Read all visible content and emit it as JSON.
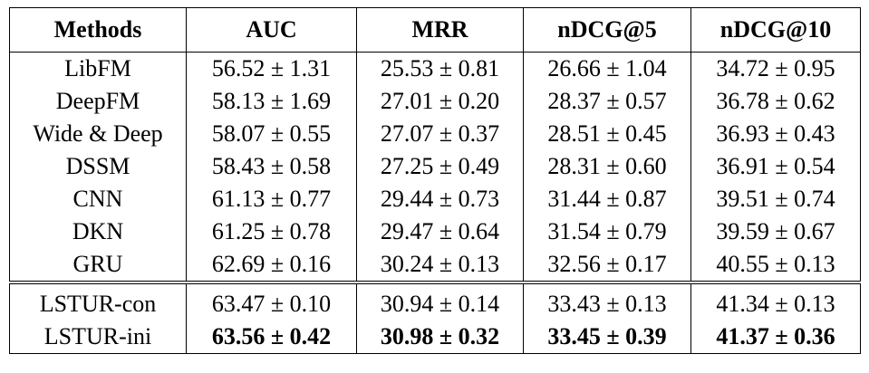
{
  "table": {
    "header": [
      "Methods",
      "AUC",
      "MRR",
      "nDCG@5",
      "nDCG@10"
    ],
    "groups": [
      [
        [
          "LibFM",
          "56.52 ± 1.31",
          "25.53 ± 0.81",
          "26.66 ± 1.04",
          "34.72 ± 0.95"
        ],
        [
          "DeepFM",
          "58.13 ± 1.69",
          "27.01 ± 0.20",
          "28.37 ± 0.57",
          "36.78 ± 0.62"
        ],
        [
          "Wide & Deep",
          "58.07 ± 0.55",
          "27.07 ± 0.37",
          "28.51 ± 0.45",
          "36.93 ± 0.43"
        ],
        [
          "DSSM",
          "58.43 ± 0.58",
          "27.25 ± 0.49",
          "28.31 ± 0.60",
          "36.91 ± 0.54"
        ],
        [
          "CNN",
          "61.13 ± 0.77",
          "29.44 ± 0.73",
          "31.44 ± 0.87",
          "39.51 ± 0.74"
        ],
        [
          "DKN",
          "61.25 ± 0.78",
          "29.47 ± 0.64",
          "31.54 ± 0.79",
          "39.59 ± 0.67"
        ],
        [
          "GRU",
          "62.69 ± 0.16",
          "30.24 ± 0.13",
          "32.56 ± 0.17",
          "40.55 ± 0.13"
        ]
      ],
      [
        [
          "LSTUR-con",
          "63.47 ± 0.10",
          "30.94 ± 0.14",
          "33.43 ± 0.13",
          "41.34 ± 0.13"
        ],
        [
          "LSTUR-ini",
          "63.56 ± 0.42",
          "30.98 ± 0.32",
          "33.45 ± 0.39",
          "41.37 ± 0.36"
        ]
      ]
    ]
  }
}
